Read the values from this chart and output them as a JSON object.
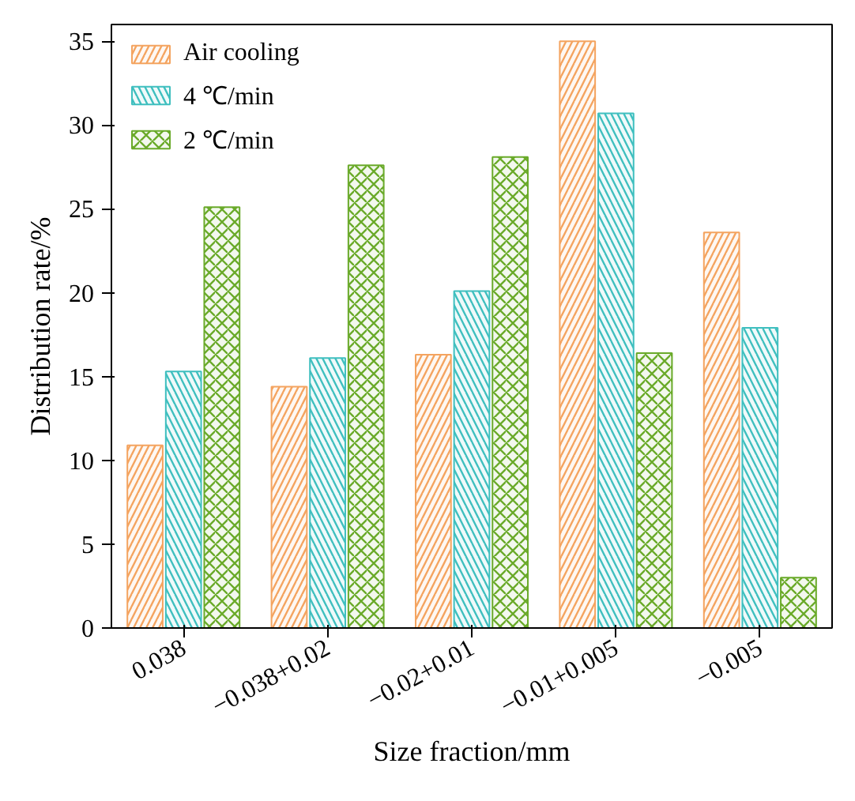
{
  "chart_data": {
    "type": "bar",
    "xlabel": "Size fraction/mm",
    "ylabel": "Distribution rate/%",
    "categories": [
      "0.038",
      "−0.038+0.02",
      "−0.02+0.01",
      "−0.01+0.005",
      "−0.005"
    ],
    "series": [
      {
        "name": "Air cooling",
        "color": "#f4a460",
        "values": [
          10.9,
          14.4,
          16.3,
          35.0,
          23.6
        ]
      },
      {
        "name": "4 ℃/min",
        "color": "#3fbfbf",
        "values": [
          15.3,
          16.1,
          20.1,
          30.7,
          17.9
        ]
      },
      {
        "name": "2 ℃/min",
        "color": "#6aaa2a",
        "values": [
          25.1,
          27.6,
          28.1,
          16.4,
          3.0
        ]
      }
    ],
    "ylim": [
      0,
      36
    ],
    "yticks": [
      0,
      5,
      10,
      15,
      20,
      25,
      30,
      35
    ],
    "grid": false,
    "legend": "top left"
  }
}
